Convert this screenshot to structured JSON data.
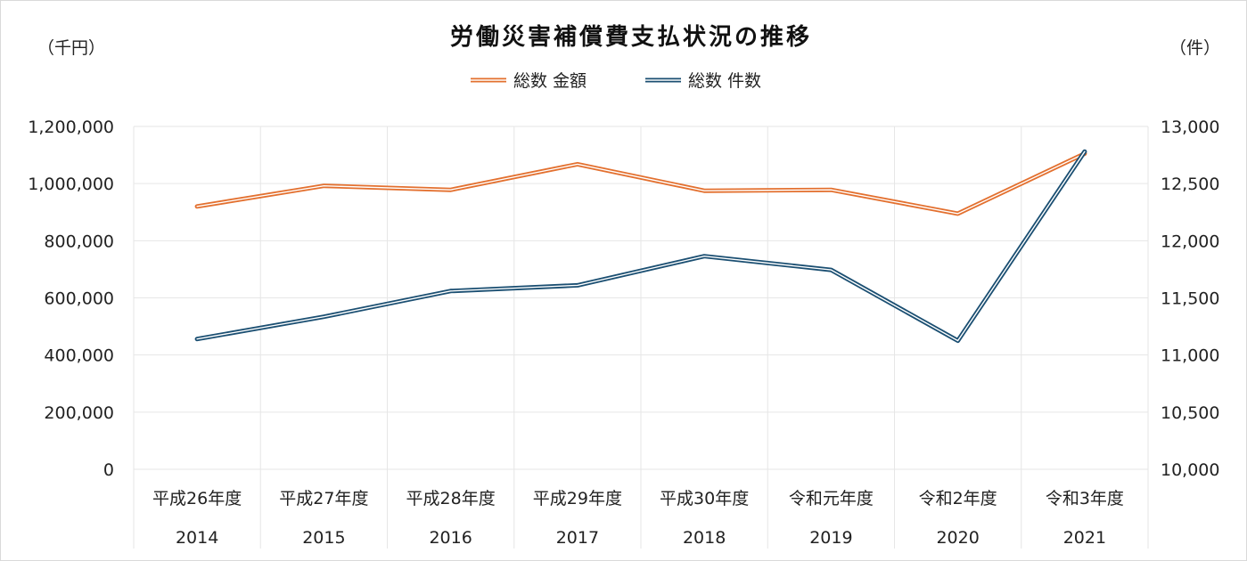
{
  "chart_data": {
    "type": "line",
    "title": "労働災害補償費支払状況の推移",
    "left_unit": "（千円）",
    "right_unit": "（件）",
    "categories": [
      "平成26年度",
      "平成27年度",
      "平成28年度",
      "平成29年度",
      "平成30年度",
      "令和元年度",
      "令和2年度",
      "令和3年度"
    ],
    "years": [
      "2014",
      "2015",
      "2016",
      "2017",
      "2018",
      "2019",
      "2020",
      "2021"
    ],
    "y_left": {
      "min": 0,
      "max": 1200000,
      "ticks": [
        "0",
        "200,000",
        "400,000",
        "600,000",
        "800,000",
        "1,000,000",
        "1,200,000"
      ]
    },
    "y_right": {
      "min": 10000,
      "max": 13000,
      "ticks": [
        "10,000",
        "10,500",
        "11,000",
        "11,500",
        "12,000",
        "12,500",
        "13,000"
      ]
    },
    "series": [
      {
        "name": "総数 金額",
        "axis": "left",
        "color": "#e3702f",
        "values": [
          920000,
          992000,
          978000,
          1068000,
          975000,
          978000,
          895000,
          1105000
        ]
      },
      {
        "name": "総数 件数",
        "axis": "right",
        "color": "#1b4f72",
        "values": [
          11140,
          11335,
          11560,
          11610,
          11865,
          11745,
          11125,
          12780
        ]
      }
    ],
    "grid": true,
    "legend_position": "top-center"
  }
}
